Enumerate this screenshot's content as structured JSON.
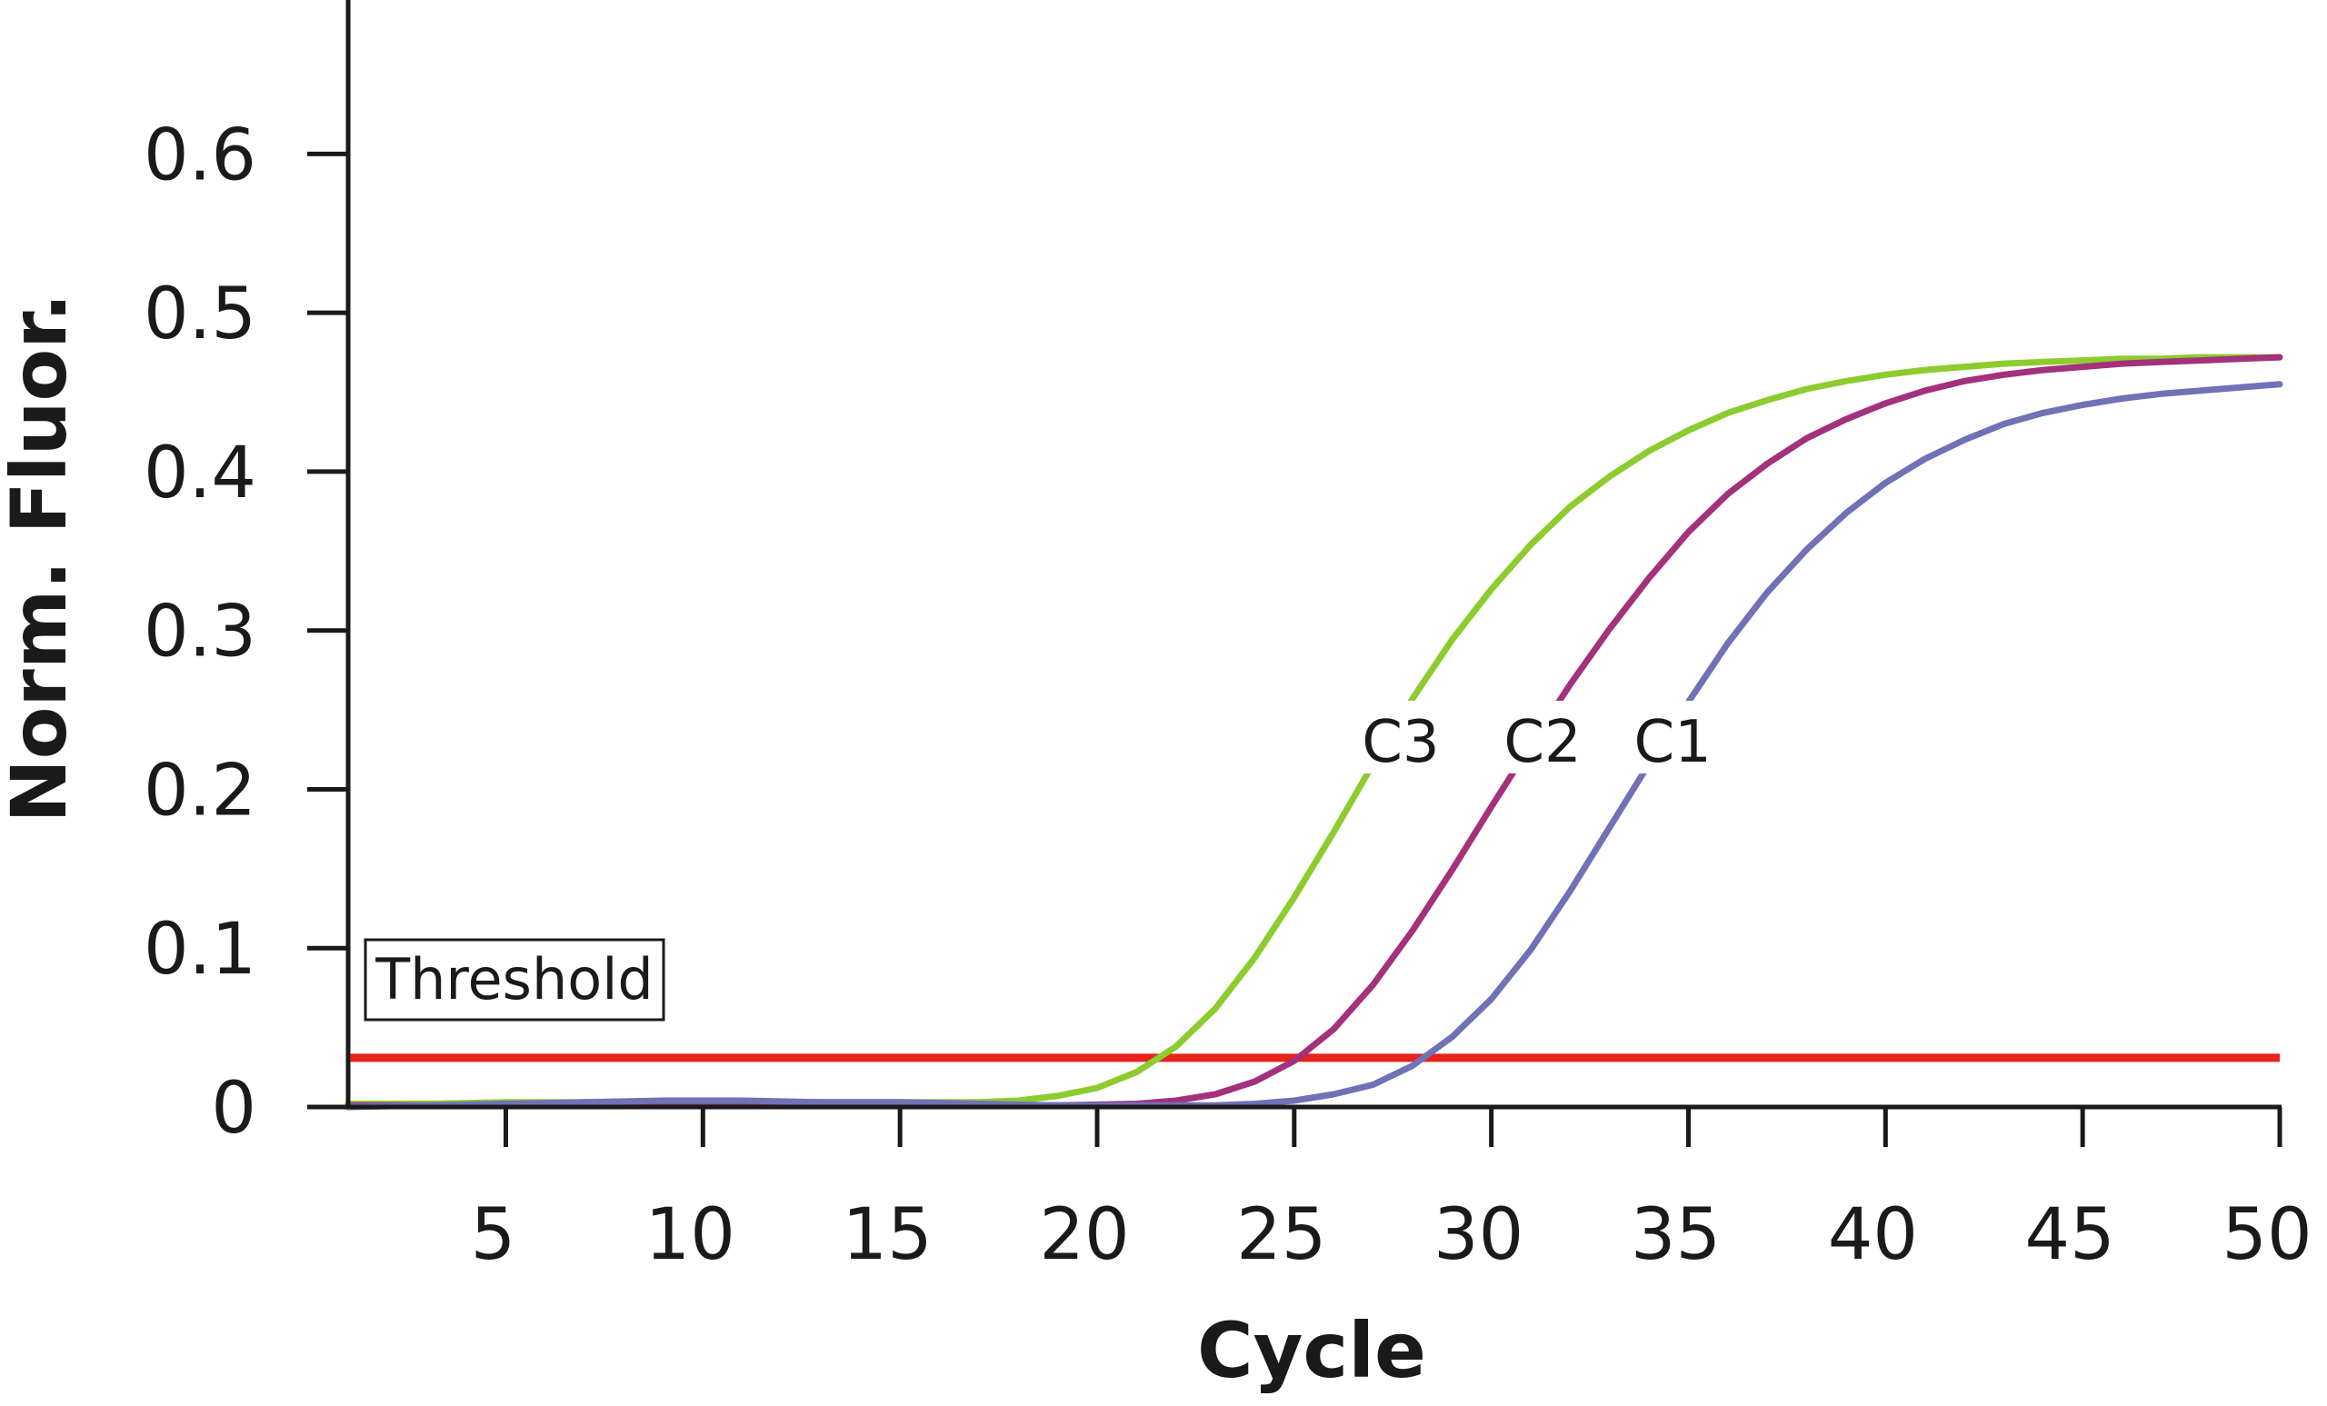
{
  "chart_data": {
    "type": "line",
    "title": "",
    "xlabel": "Cycle",
    "ylabel": "Norm. Fluor.",
    "xlim": [
      1,
      50
    ],
    "ylim": [
      0,
      0.65
    ],
    "xticks": [
      5,
      10,
      15,
      20,
      25,
      30,
      35,
      40,
      45,
      50
    ],
    "xtick_labels": [
      "5",
      "10",
      "15",
      "20",
      "25",
      "30",
      "35",
      "40",
      "45",
      "50"
    ],
    "yticks": [
      0,
      0.1,
      0.2,
      0.3,
      0.4,
      0.5,
      0.6
    ],
    "ytick_labels": [
      "0",
      "0.1",
      "0.2",
      "0.3",
      "0.4",
      "0.5",
      "0.6"
    ],
    "grid": false,
    "threshold": {
      "label": "Threshold",
      "value": 0.031,
      "color": "#e8231c"
    },
    "series": [
      {
        "name": "C3",
        "color": "#8ccc2e",
        "label_at": [
          27.7,
          0.23
        ],
        "x": [
          1,
          3,
          5,
          7,
          9,
          11,
          13,
          15,
          17,
          18,
          19,
          20,
          21,
          22,
          23,
          24,
          25,
          26,
          27,
          28,
          29,
          30,
          31,
          32,
          33,
          34,
          35,
          36,
          37,
          38,
          39,
          40,
          41,
          42,
          43,
          44,
          45,
          46,
          47,
          48,
          49,
          50
        ],
        "y": [
          0.002,
          0.002,
          0.003,
          0.003,
          0.003,
          0.003,
          0.003,
          0.003,
          0.003,
          0.004,
          0.007,
          0.012,
          0.022,
          0.038,
          0.062,
          0.094,
          0.132,
          0.173,
          0.216,
          0.257,
          0.294,
          0.326,
          0.354,
          0.378,
          0.397,
          0.413,
          0.426,
          0.437,
          0.445,
          0.452,
          0.457,
          0.461,
          0.464,
          0.466,
          0.468,
          0.469,
          0.47,
          0.471,
          0.471,
          0.472,
          0.472,
          0.472
        ]
      },
      {
        "name": "C2",
        "color": "#a3317b",
        "label_at": [
          31.3,
          0.23
        ],
        "x": [
          1,
          3,
          5,
          7,
          9,
          11,
          13,
          15,
          17,
          19,
          21,
          22,
          23,
          24,
          25,
          26,
          27,
          28,
          29,
          30,
          31,
          32,
          33,
          34,
          35,
          36,
          37,
          38,
          39,
          40,
          41,
          42,
          43,
          44,
          45,
          46,
          47,
          48,
          49,
          50
        ],
        "y": [
          0.001,
          0.001,
          0.001,
          0.001,
          0.001,
          0.001,
          0.001,
          0.001,
          0.001,
          0.001,
          0.002,
          0.004,
          0.008,
          0.016,
          0.029,
          0.049,
          0.077,
          0.111,
          0.149,
          0.189,
          0.228,
          0.266,
          0.301,
          0.333,
          0.362,
          0.386,
          0.405,
          0.421,
          0.433,
          0.443,
          0.451,
          0.457,
          0.461,
          0.464,
          0.466,
          0.468,
          0.469,
          0.47,
          0.471,
          0.472
        ]
      },
      {
        "name": "C1",
        "color": "#6f72b5",
        "label_at": [
          34.6,
          0.23
        ],
        "x": [
          1,
          3,
          5,
          7,
          9,
          11,
          13,
          15,
          17,
          19,
          21,
          23,
          24,
          25,
          26,
          27,
          28,
          29,
          30,
          31,
          32,
          33,
          34,
          35,
          36,
          37,
          38,
          39,
          40,
          41,
          42,
          43,
          44,
          45,
          46,
          47,
          48,
          49,
          50
        ],
        "y": [
          0.0,
          0.001,
          0.002,
          0.003,
          0.004,
          0.004,
          0.003,
          0.003,
          0.002,
          0.001,
          0.001,
          0.001,
          0.002,
          0.004,
          0.008,
          0.014,
          0.026,
          0.044,
          0.068,
          0.099,
          0.136,
          0.176,
          0.216,
          0.255,
          0.292,
          0.324,
          0.351,
          0.374,
          0.393,
          0.408,
          0.42,
          0.43,
          0.437,
          0.442,
          0.446,
          0.449,
          0.451,
          0.453,
          0.455
        ]
      }
    ]
  }
}
